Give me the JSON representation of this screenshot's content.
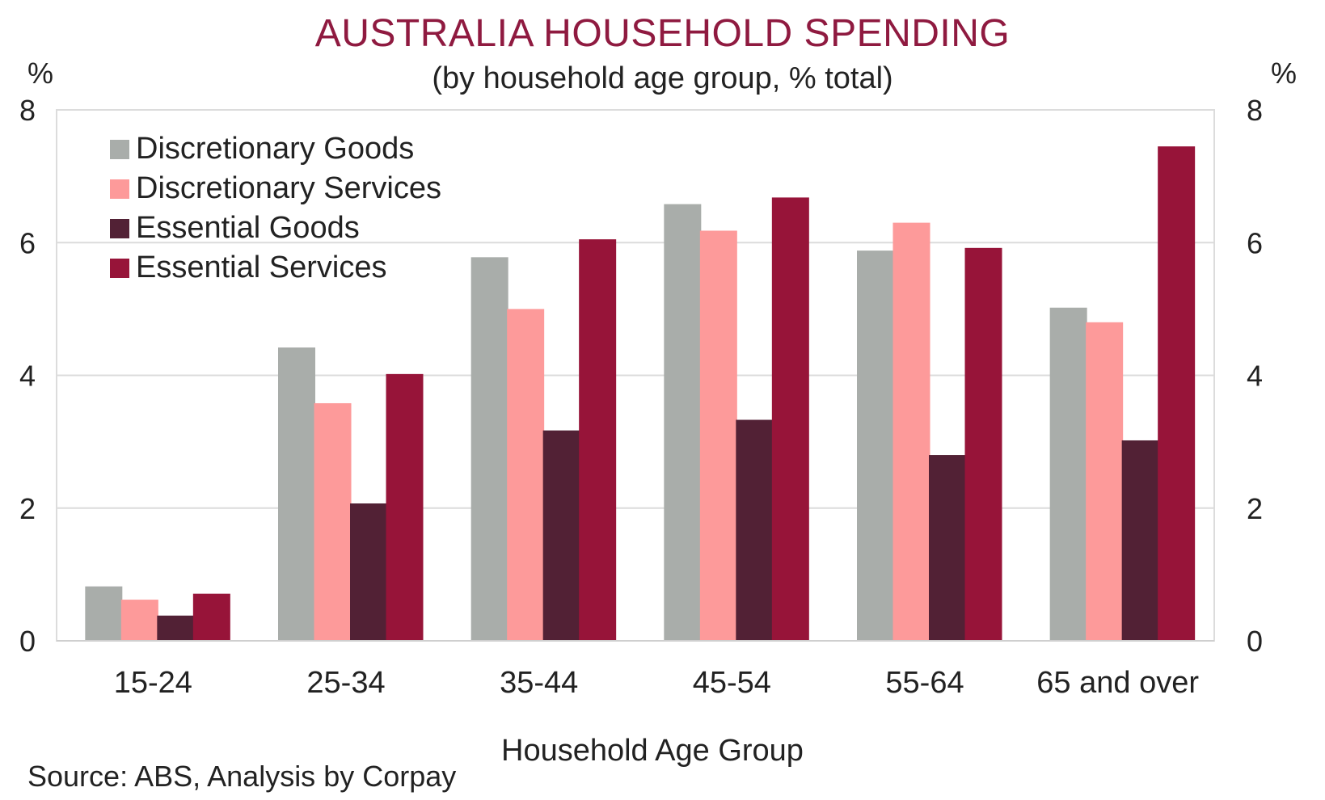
{
  "chart_data": {
    "type": "bar",
    "title": "AUSTRALIA HOUSEHOLD SPENDING",
    "subtitle": "(by household age group, % total)",
    "xlabel": "Household Age Group",
    "ylabel_left": "%",
    "ylabel_right": "%",
    "ylim": [
      0,
      8
    ],
    "yticks": [
      0,
      2,
      4,
      6,
      8
    ],
    "grid": true,
    "legend_position": "top-left",
    "categories": [
      "15-24",
      "25-34",
      "35-44",
      "45-54",
      "55-64",
      "65 and over"
    ],
    "series": [
      {
        "name": "Discretionary Goods",
        "color": "#a9adaa",
        "values": [
          0.82,
          4.42,
          5.78,
          6.58,
          5.88,
          5.02
        ]
      },
      {
        "name": "Discretionary Services",
        "color": "#fd9a9a",
        "values": [
          0.62,
          3.58,
          5.0,
          6.18,
          6.3,
          4.8
        ]
      },
      {
        "name": "Essential Goods",
        "color": "#522135",
        "values": [
          0.38,
          2.07,
          3.17,
          3.33,
          2.8,
          3.02
        ]
      },
      {
        "name": "Essential Services",
        "color": "#971439",
        "values": [
          0.71,
          4.02,
          6.05,
          6.68,
          5.92,
          7.45
        ]
      }
    ],
    "source": "Source: ABS, Analysis by Corpay"
  }
}
